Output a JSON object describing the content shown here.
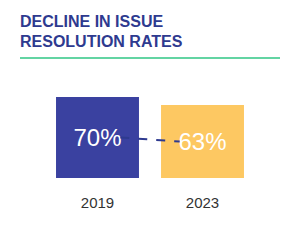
{
  "chart_data": {
    "type": "bar",
    "title": "DECLINE IN ISSUE RESOLUTION RATES",
    "categories": [
      "2019",
      "2023"
    ],
    "values": [
      70,
      63
    ],
    "value_labels": [
      "70%",
      "63%"
    ],
    "data_labels": true,
    "colors": [
      "#3a41a0",
      "#fdc862"
    ],
    "ylim": [
      0,
      70
    ],
    "yticks": [
      0,
      70
    ],
    "tick_labels": "x",
    "grid": false
  }
}
